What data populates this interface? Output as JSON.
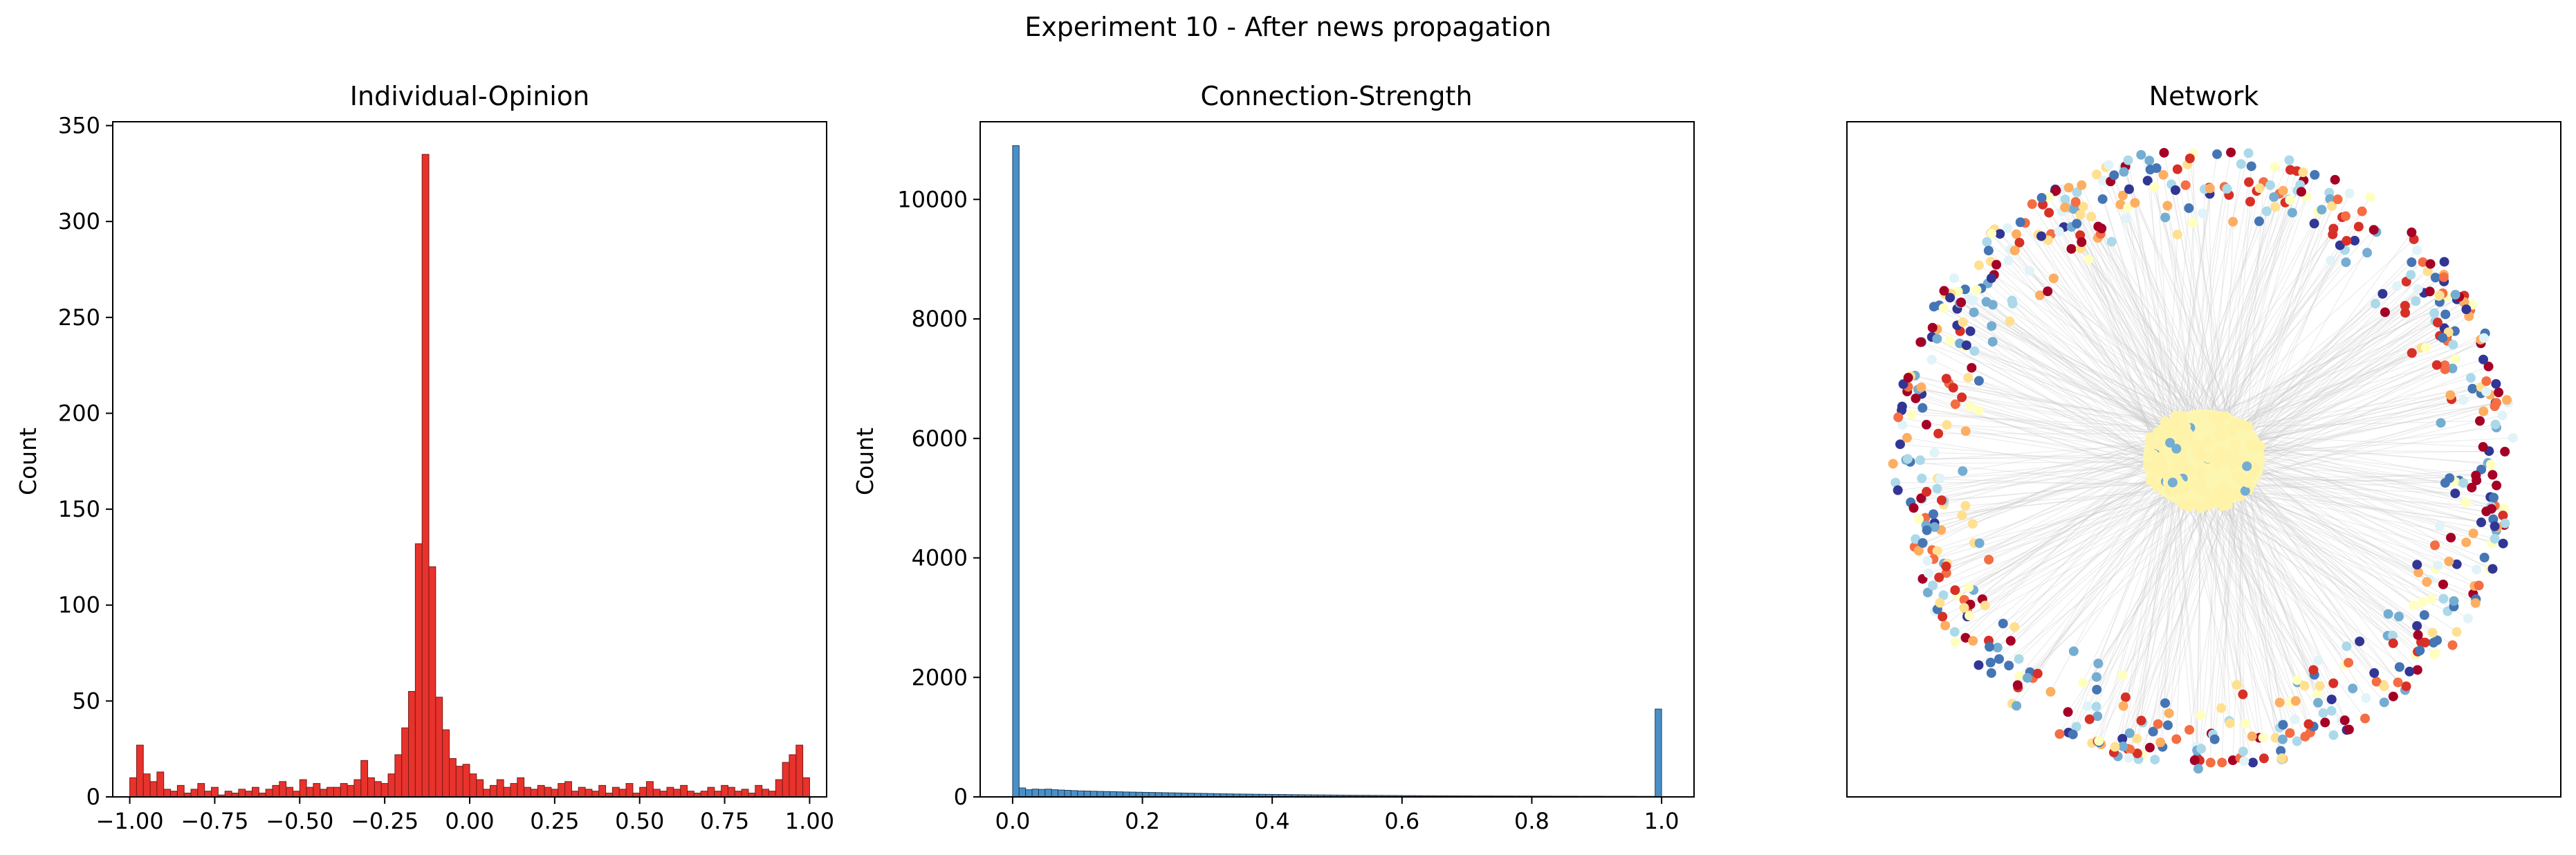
{
  "figure": {
    "suptitle": "Experiment 10 - After news propagation"
  },
  "chart_data": [
    {
      "type": "histogram",
      "title": "Individual-Opinion",
      "xlabel": "",
      "ylabel": "Count",
      "xlim": [
        -1.05,
        1.05
      ],
      "ylim": [
        0,
        352
      ],
      "xticks": [
        -1.0,
        -0.75,
        -0.5,
        -0.25,
        0.0,
        0.25,
        0.5,
        0.75,
        1.0
      ],
      "xtick_labels": [
        "−1.00",
        "−0.75",
        "−0.50",
        "−0.25",
        "0.00",
        "0.25",
        "0.50",
        "0.75",
        "1.00"
      ],
      "yticks": [
        0,
        50,
        100,
        150,
        200,
        250,
        300,
        350
      ],
      "ytick_labels": [
        "0",
        "50",
        "100",
        "150",
        "200",
        "250",
        "300",
        "350"
      ],
      "bin_start": -1.0,
      "bin_width": 0.02,
      "color": "#e8322c",
      "edge_color": "#7a1a17",
      "counts": [
        10,
        27,
        12,
        8,
        13,
        4,
        3,
        6,
        2,
        4,
        7,
        3,
        5,
        1,
        3,
        2,
        4,
        3,
        5,
        2,
        4,
        6,
        8,
        5,
        3,
        9,
        5,
        7,
        4,
        5,
        5,
        7,
        6,
        9,
        19,
        10,
        8,
        7,
        12,
        22,
        36,
        55,
        132,
        335,
        120,
        52,
        35,
        20,
        16,
        17,
        12,
        9,
        4,
        6,
        9,
        5,
        7,
        10,
        5,
        4,
        6,
        5,
        4,
        7,
        8,
        3,
        5,
        4,
        3,
        6,
        2,
        5,
        4,
        7,
        2,
        5,
        8,
        4,
        3,
        5,
        4,
        6,
        3,
        2,
        3,
        5,
        3,
        6,
        5,
        3,
        4,
        2,
        6,
        4,
        3,
        9,
        18,
        22,
        27,
        10
      ]
    },
    {
      "type": "histogram",
      "title": "Connection-Strength",
      "xlabel": "",
      "ylabel": "Count",
      "xlim": [
        -0.05,
        1.05
      ],
      "ylim": [
        0,
        11300
      ],
      "xticks": [
        0.0,
        0.2,
        0.4,
        0.6,
        0.8,
        1.0
      ],
      "xtick_labels": [
        "0.0",
        "0.2",
        "0.4",
        "0.6",
        "0.8",
        "1.0"
      ],
      "yticks": [
        0,
        2000,
        4000,
        6000,
        8000,
        10000
      ],
      "ytick_labels": [
        "0",
        "2000",
        "4000",
        "6000",
        "8000",
        "10000"
      ],
      "bin_start": 0.0,
      "bin_width": 0.01,
      "color": "#4a90c8",
      "edge_color": "#1c3f5c",
      "counts": [
        10900,
        150,
        120,
        130,
        125,
        130,
        120,
        115,
        110,
        105,
        100,
        98,
        95,
        92,
        90,
        88,
        85,
        82,
        80,
        78,
        76,
        74,
        72,
        70,
        68,
        66,
        64,
        62,
        60,
        58,
        56,
        54,
        52,
        50,
        48,
        47,
        46,
        44,
        43,
        42,
        41,
        40,
        38,
        37,
        36,
        35,
        34,
        33,
        32,
        31,
        30,
        29,
        28,
        27,
        27,
        26,
        25,
        24,
        24,
        23,
        22,
        22,
        21,
        20,
        20,
        19,
        19,
        18,
        18,
        17,
        17,
        16,
        16,
        16,
        15,
        15,
        15,
        14,
        14,
        14,
        13,
        13,
        13,
        12,
        12,
        12,
        12,
        11,
        11,
        11,
        11,
        10,
        10,
        10,
        10,
        10,
        9,
        9,
        9,
        1470
      ]
    },
    {
      "type": "network",
      "title": "Network",
      "description_colors": [
        "#313695",
        "#4575b4",
        "#74add1",
        "#abd9e9",
        "#e0f3f8",
        "#ffffbf",
        "#fee090",
        "#fdae61",
        "#f46d43",
        "#d73027",
        "#a50026"
      ],
      "node_count": 650,
      "center_cluster_color": "#fdf6b0"
    }
  ]
}
